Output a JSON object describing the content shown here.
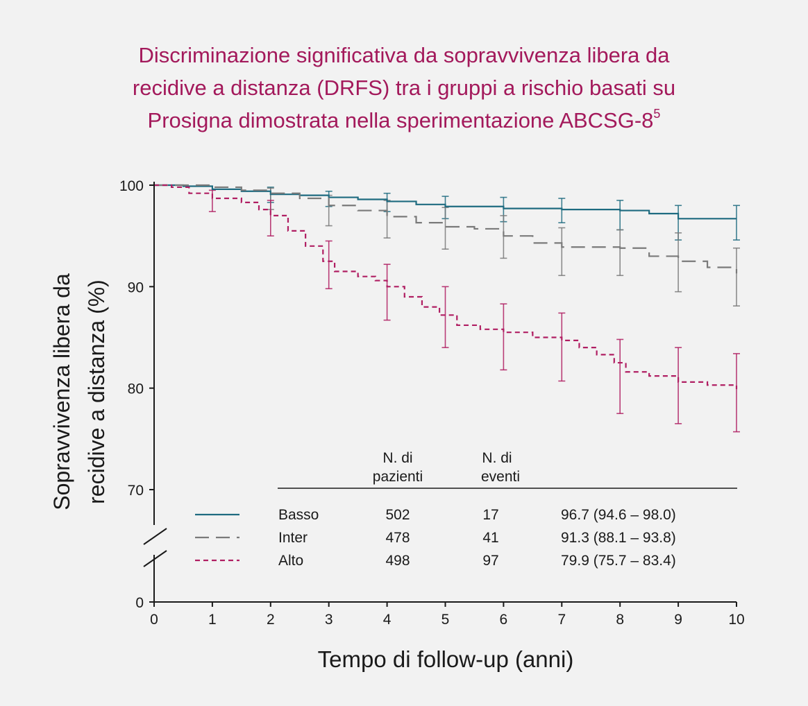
{
  "title": {
    "line1": "Discriminazione significativa da sopravvivenza libera da",
    "line2": "recidive a distanza (DRFS) tra i gruppi a rischio basati su",
    "line3": "Prosigna dimostrata nella sperimentazione ABCSG-8",
    "sup": "5"
  },
  "colors": {
    "title": "#a3195b",
    "basso": "#1e6b80",
    "inter": "#7a7a7a",
    "alto": "#b01e62",
    "axis": "#1a1a1a"
  },
  "chart_data": {
    "type": "line",
    "xlabel": "Tempo di follow-up (anni)",
    "ylabel_line1": "Sopravvivenza libera da",
    "ylabel_line2": "recidive a distanza (%)",
    "xlim": [
      0,
      10
    ],
    "ylim_visible": [
      70,
      100
    ],
    "y_axis_break": "between 0 and 70",
    "x_ticks": [
      "0",
      "1",
      "2",
      "3",
      "4",
      "5",
      "6",
      "7",
      "8",
      "9",
      "10"
    ],
    "y_ticks": [
      "100",
      "90",
      "80",
      "70",
      "0"
    ],
    "series": [
      {
        "name": "Basso",
        "style": "solid",
        "x": [
          0,
          0.5,
          1,
          1.5,
          2,
          2.5,
          3,
          3.5,
          4,
          4.5,
          5,
          6,
          7,
          8,
          8.5,
          9,
          10
        ],
        "y": [
          100,
          99.9,
          99.6,
          99.4,
          99.1,
          99.0,
          98.8,
          98.6,
          98.4,
          98.1,
          97.9,
          97.7,
          97.6,
          97.5,
          97.2,
          96.7,
          96.7
        ],
        "ci": [
          {
            "x": 2,
            "lo": 98.3,
            "hi": 99.8
          },
          {
            "x": 3,
            "lo": 97.9,
            "hi": 99.4
          },
          {
            "x": 4,
            "lo": 97.4,
            "hi": 99.2
          },
          {
            "x": 5,
            "lo": 96.7,
            "hi": 98.9
          },
          {
            "x": 6,
            "lo": 96.4,
            "hi": 98.8
          },
          {
            "x": 7,
            "lo": 96.3,
            "hi": 98.7
          },
          {
            "x": 8,
            "lo": 95.6,
            "hi": 98.5
          },
          {
            "x": 9,
            "lo": 94.6,
            "hi": 98.0
          },
          {
            "x": 10,
            "lo": 94.6,
            "hi": 98.0
          }
        ]
      },
      {
        "name": "Inter",
        "style": "dashed",
        "x": [
          0,
          0.5,
          1,
          1.5,
          2,
          2.5,
          3,
          3.5,
          4,
          4.5,
          5,
          5.5,
          6,
          6.5,
          7,
          7.5,
          8,
          8.5,
          9,
          9.5,
          10
        ],
        "y": [
          100,
          100,
          99.8,
          99.5,
          99.2,
          98.7,
          98.0,
          97.5,
          96.9,
          96.3,
          95.9,
          95.7,
          95.0,
          94.3,
          93.9,
          93.9,
          93.8,
          93.0,
          92.5,
          91.9,
          91.3
        ],
        "ci": [
          {
            "x": 2,
            "lo": 97.6,
            "hi": 99.7
          },
          {
            "x": 3,
            "lo": 96.0,
            "hi": 99.0
          },
          {
            "x": 4,
            "lo": 94.8,
            "hi": 98.5
          },
          {
            "x": 5,
            "lo": 93.7,
            "hi": 97.8
          },
          {
            "x": 6,
            "lo": 92.8,
            "hi": 97.0
          },
          {
            "x": 7,
            "lo": 91.1,
            "hi": 95.8
          },
          {
            "x": 8,
            "lo": 91.1,
            "hi": 95.6
          },
          {
            "x": 9,
            "lo": 89.5,
            "hi": 95.3
          },
          {
            "x": 10,
            "lo": 88.1,
            "hi": 93.8
          }
        ]
      },
      {
        "name": "Alto",
        "style": "dotted",
        "x": [
          0,
          0.3,
          0.6,
          1,
          1.5,
          1.8,
          2,
          2.3,
          2.6,
          2.9,
          3.1,
          3.5,
          3.8,
          4,
          4.3,
          4.6,
          4.9,
          5.2,
          5.6,
          6,
          6.5,
          7,
          7.3,
          7.6,
          7.9,
          8.1,
          8.5,
          9,
          9.5,
          10
        ],
        "y": [
          100,
          99.8,
          99.2,
          98.7,
          98.3,
          97.6,
          97.0,
          95.5,
          94.0,
          92.5,
          91.5,
          91.0,
          90.6,
          90.0,
          89.0,
          88.0,
          87.2,
          86.2,
          85.8,
          85.5,
          85.0,
          84.7,
          84.0,
          83.3,
          82.5,
          81.6,
          81.2,
          80.6,
          80.3,
          79.9
        ],
        "ci": [
          {
            "x": 1,
            "lo": 97.4,
            "hi": 99.5
          },
          {
            "x": 2,
            "lo": 95.0,
            "hi": 98.5
          },
          {
            "x": 3,
            "lo": 89.8,
            "hi": 94.5
          },
          {
            "x": 4,
            "lo": 86.7,
            "hi": 92.2
          },
          {
            "x": 5,
            "lo": 84.0,
            "hi": 90.0
          },
          {
            "x": 6,
            "lo": 81.8,
            "hi": 88.3
          },
          {
            "x": 7,
            "lo": 80.7,
            "hi": 87.4
          },
          {
            "x": 8,
            "lo": 77.5,
            "hi": 84.8
          },
          {
            "x": 9,
            "lo": 76.5,
            "hi": 84.0
          },
          {
            "x": 10,
            "lo": 75.7,
            "hi": 83.4
          }
        ]
      }
    ],
    "table": {
      "col_patients_line1": "N. di",
      "col_patients_line2": "pazienti",
      "col_events_line1": "N. di",
      "col_events_line2": "eventi",
      "rows": [
        {
          "group": "Basso",
          "patients": "502",
          "events": "17",
          "drfs": "96.7 (94.6 – 98.0)"
        },
        {
          "group": "Inter",
          "patients": "478",
          "events": "41",
          "drfs": "91.3 (88.1 – 93.8)"
        },
        {
          "group": "Alto",
          "patients": "498",
          "events": "97",
          "drfs": "79.9 (75.7 – 83.4)"
        }
      ]
    }
  }
}
